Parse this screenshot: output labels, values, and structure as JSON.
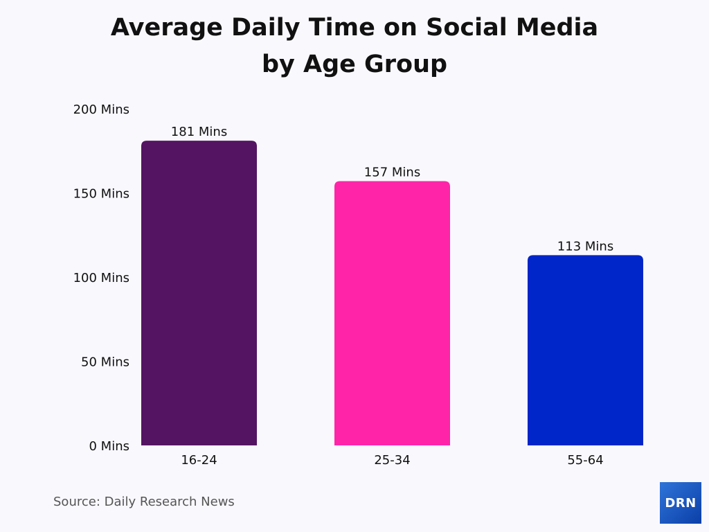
{
  "chart_data": {
    "type": "bar",
    "title_lines": [
      "Average Daily Time on Social Media",
      "by Age Group"
    ],
    "categories": [
      "16-24",
      "25-34",
      "55-64"
    ],
    "values": [
      181,
      157,
      113
    ],
    "data_labels": [
      "181 Mins",
      "157 Mins",
      "113 Mins"
    ],
    "colors": [
      "#541461",
      "#ff24a8",
      "#0025c8"
    ],
    "yticks": [
      0,
      50,
      100,
      150,
      200
    ],
    "ytick_labels": [
      "0 Mins",
      "50 Mins",
      "100 Mins",
      "150 Mins",
      "200 Mins"
    ],
    "ylim": [
      0,
      200
    ],
    "xlabel": "",
    "ylabel": "",
    "grid": false
  },
  "source": "Source: Daily Research News",
  "logo_text": "DRN"
}
